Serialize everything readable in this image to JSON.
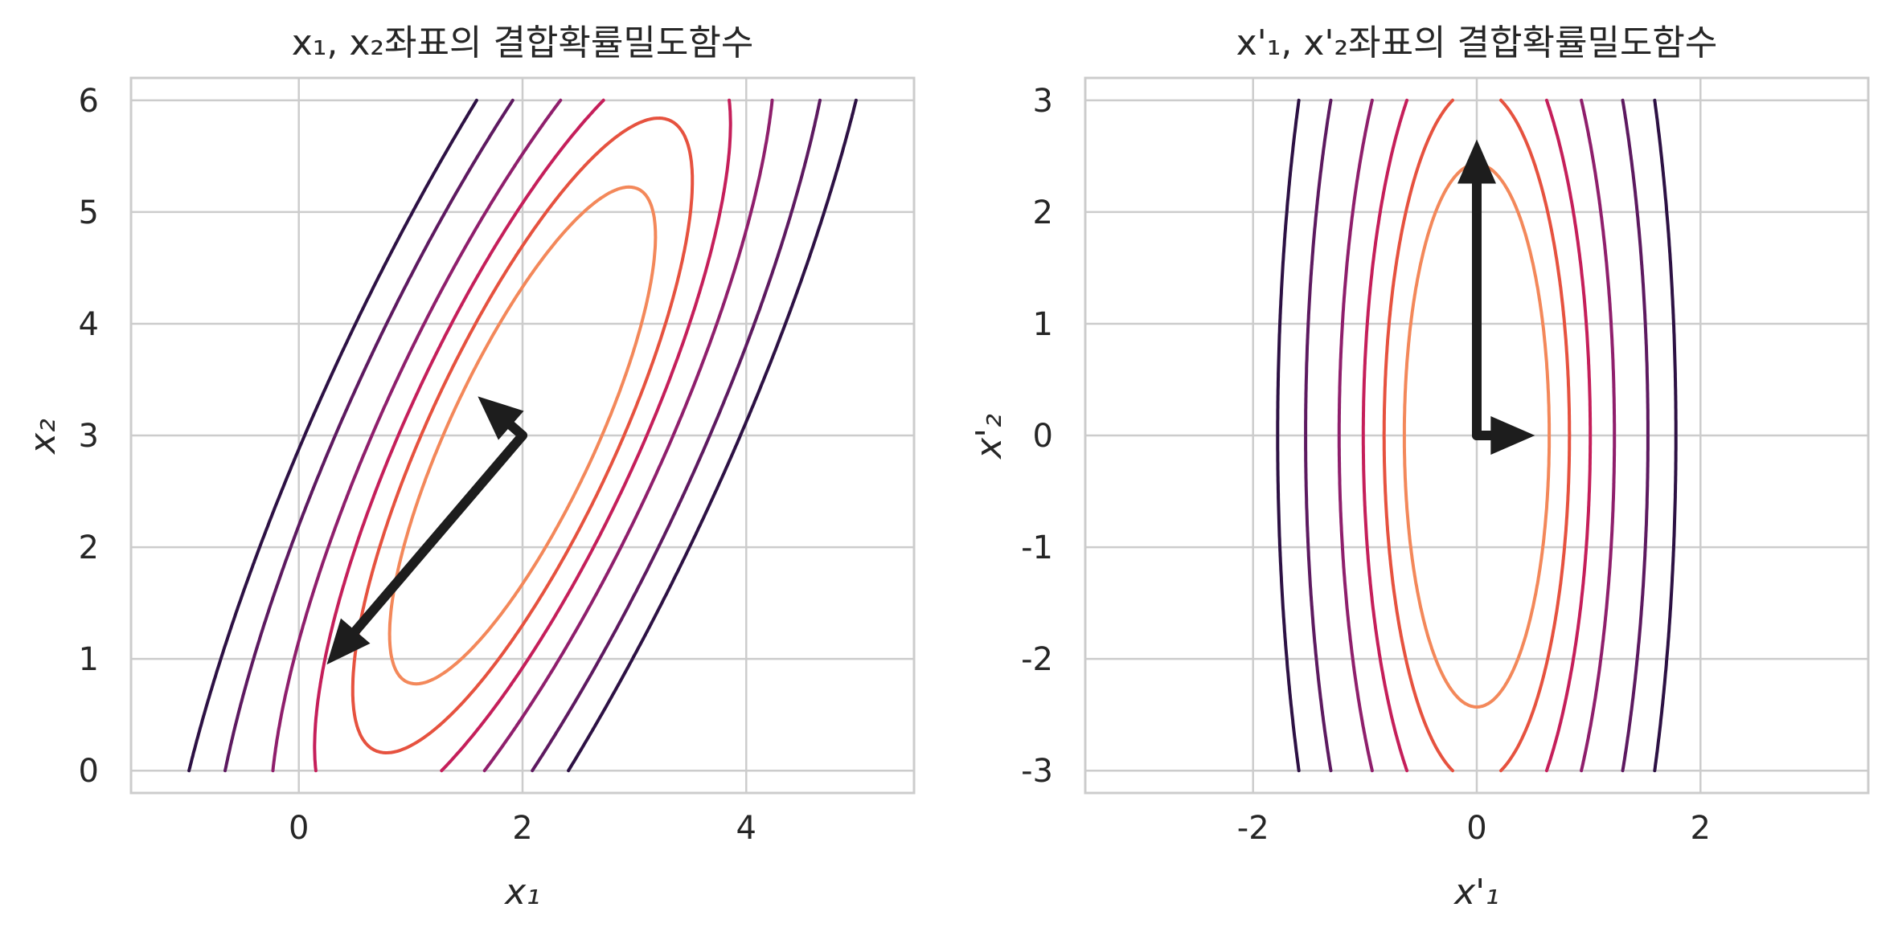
{
  "chart_data": [
    {
      "type": "contour",
      "title": "x₁, x₂좌표의 결합확률밀도함수",
      "xlabel": "x₁",
      "ylabel": "x₂",
      "xlim": [
        -1.5,
        5.5
      ],
      "ylim": [
        -0.2,
        6.2
      ],
      "xticks": [
        0,
        2,
        4
      ],
      "yticks": [
        0,
        1,
        2,
        3,
        4,
        5,
        6
      ],
      "xtick_labels": [
        "0",
        "2",
        "4"
      ],
      "ytick_labels": [
        "0",
        "1",
        "2",
        "3",
        "4",
        "5",
        "6"
      ],
      "grid": true,
      "mean": [
        2,
        3
      ],
      "covariance": [
        [
          2.0,
          3.0
        ],
        [
          3.0,
          7.0
        ]
      ],
      "contour_range": {
        "x": [
          -1,
          5
        ],
        "y": [
          0,
          6
        ]
      },
      "contour_levels": [
        0.005,
        0.01,
        0.02,
        0.03,
        0.04,
        0.05
      ],
      "contour_colors": [
        "#2d1144",
        "#5d1a60",
        "#8f1f6c",
        "#c51f5a",
        "#e6523f",
        "#f3885a",
        "#f7b999"
      ],
      "arrows": [
        {
          "from": [
            2,
            3
          ],
          "to": [
            1.6,
            3.35
          ]
        },
        {
          "from": [
            2,
            3
          ],
          "to": [
            0.25,
            0.95
          ]
        }
      ]
    },
    {
      "type": "contour",
      "title": "x'₁, x'₂좌표의 결합확률밀도함수",
      "xlabel": "x'₁",
      "ylabel": "x'₂",
      "xlim": [
        -3.5,
        3.5
      ],
      "ylim": [
        -3.2,
        3.2
      ],
      "xticks": [
        -2,
        0,
        2
      ],
      "yticks": [
        -3,
        -2,
        -1,
        0,
        1,
        2,
        3
      ],
      "xtick_labels": [
        "-2",
        "0",
        "2"
      ],
      "ytick_labels": [
        "-3",
        "-2",
        "-1",
        "0",
        "1",
        "2",
        "3"
      ],
      "grid": true,
      "mean": [
        0,
        0
      ],
      "covariance": [
        [
          0.597,
          0.0
        ],
        [
          0.0,
          8.403
        ]
      ],
      "contour_range": {
        "x": [
          -3,
          3
        ],
        "y": [
          -3,
          3
        ]
      },
      "contour_levels": [
        0.005,
        0.01,
        0.02,
        0.03,
        0.04,
        0.05
      ],
      "contour_colors": [
        "#2d1144",
        "#5d1a60",
        "#8f1f6c",
        "#c51f5a",
        "#e6523f",
        "#f3885a",
        "#f7b999"
      ],
      "arrows": [
        {
          "from": [
            0,
            0
          ],
          "to": [
            0,
            2.65
          ]
        },
        {
          "from": [
            0,
            0
          ],
          "to": [
            0.52,
            0
          ]
        }
      ]
    }
  ],
  "style": {
    "grid_color": "#cccccc",
    "spine_color": "#cccccc",
    "arrow_color": "#1d1d1d",
    "text_color": "#262626"
  }
}
